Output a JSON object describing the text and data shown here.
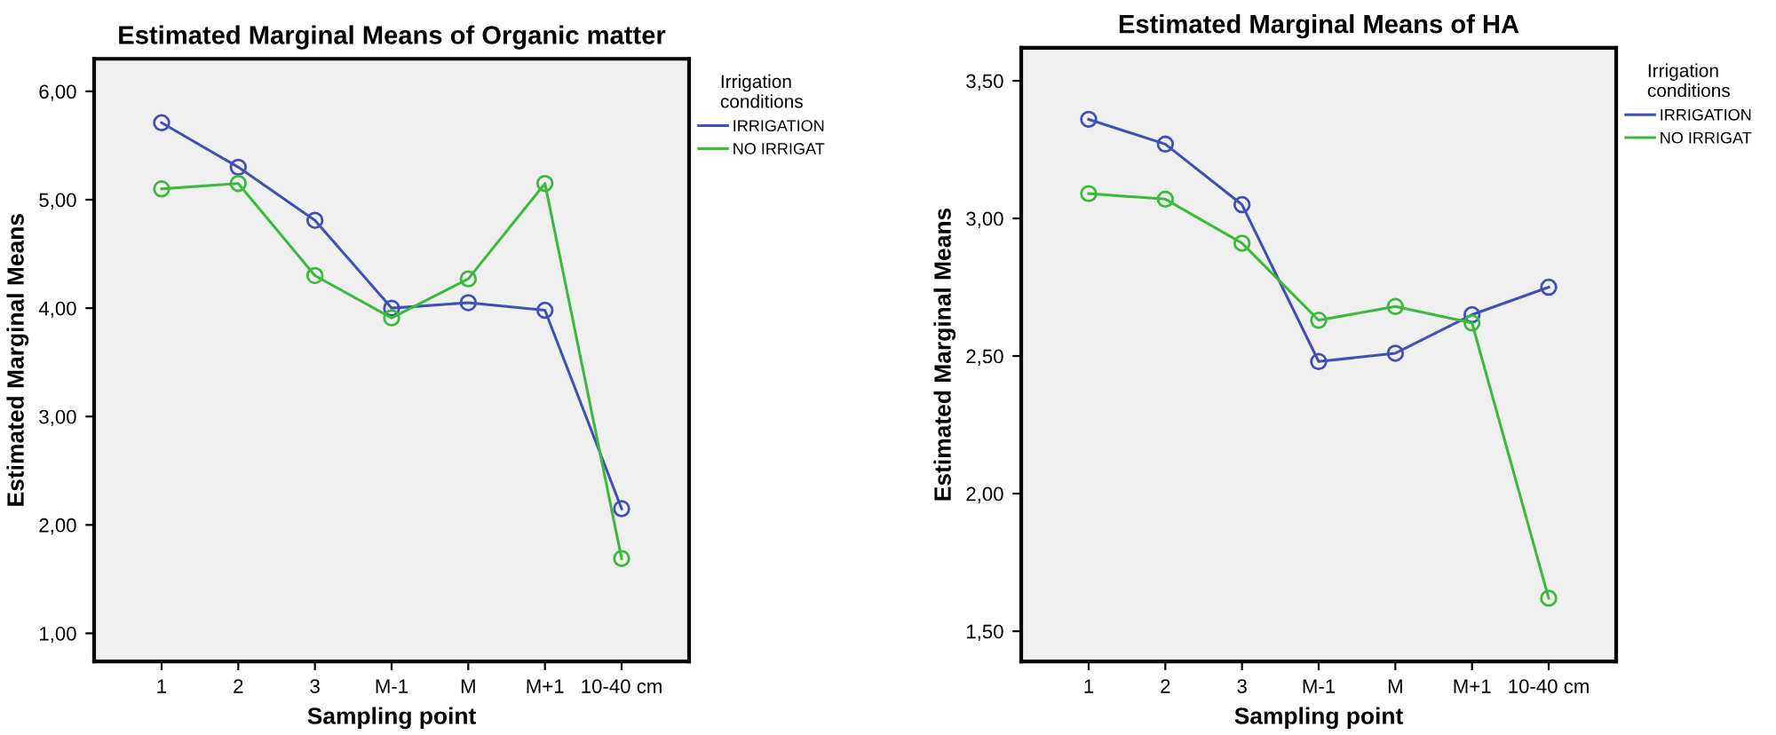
{
  "chart_data": [
    {
      "type": "line",
      "title": "Estimated Marginal Means of Organic matter",
      "xlabel": "Sampling point",
      "ylabel": "Estimated Marginal Means",
      "legend_title": "Irrigation\nconditions",
      "legend": "right",
      "marker": "circle",
      "grid": false,
      "categories": [
        "1",
        "2",
        "3",
        "M-1",
        "M",
        "M+1",
        "10-40 cm"
      ],
      "series": [
        {
          "name": "IRRIGATION",
          "color": "#3f51b5",
          "values": [
            5.71,
            5.3,
            4.81,
            4.0,
            4.05,
            3.98,
            2.15
          ]
        },
        {
          "name": "NO IRRIGAT",
          "color": "#3cba3c",
          "values": [
            5.1,
            5.15,
            4.3,
            3.91,
            4.27,
            5.15,
            1.69
          ]
        }
      ],
      "ylim": [
        0.74,
        6.3
      ],
      "yticks": [
        {
          "value": 1,
          "label": "1,00"
        },
        {
          "value": 2,
          "label": "2,00"
        },
        {
          "value": 3,
          "label": "3,00"
        },
        {
          "value": 4,
          "label": "4,00"
        },
        {
          "value": 5,
          "label": "5,00"
        },
        {
          "value": 6,
          "label": "6,00"
        }
      ]
    },
    {
      "type": "line",
      "title": "Estimated Marginal Means of HA",
      "xlabel": "Sampling point",
      "ylabel": "Estimated Marginal Means",
      "legend_title": "Irrigation\nconditions",
      "legend": "right",
      "marker": "circle",
      "grid": false,
      "categories": [
        "1",
        "2",
        "3",
        "M-1",
        "M",
        "M+1",
        "10-40 cm"
      ],
      "series": [
        {
          "name": "IRRIGATION",
          "color": "#3f51b5",
          "values": [
            3.36,
            3.27,
            3.05,
            2.48,
            2.51,
            2.65,
            2.75
          ]
        },
        {
          "name": "NO IRRIGAT",
          "color": "#3cba3c",
          "values": [
            3.09,
            3.07,
            2.91,
            2.63,
            2.68,
            2.62,
            1.62
          ]
        }
      ],
      "ylim": [
        1.39,
        3.62
      ],
      "yticks": [
        {
          "value": 1.5,
          "label": "1,50"
        },
        {
          "value": 2,
          "label": "2,00"
        },
        {
          "value": 2.5,
          "label": "2,50"
        },
        {
          "value": 3,
          "label": "3,00"
        },
        {
          "value": 3.5,
          "label": "3,50"
        }
      ]
    }
  ]
}
